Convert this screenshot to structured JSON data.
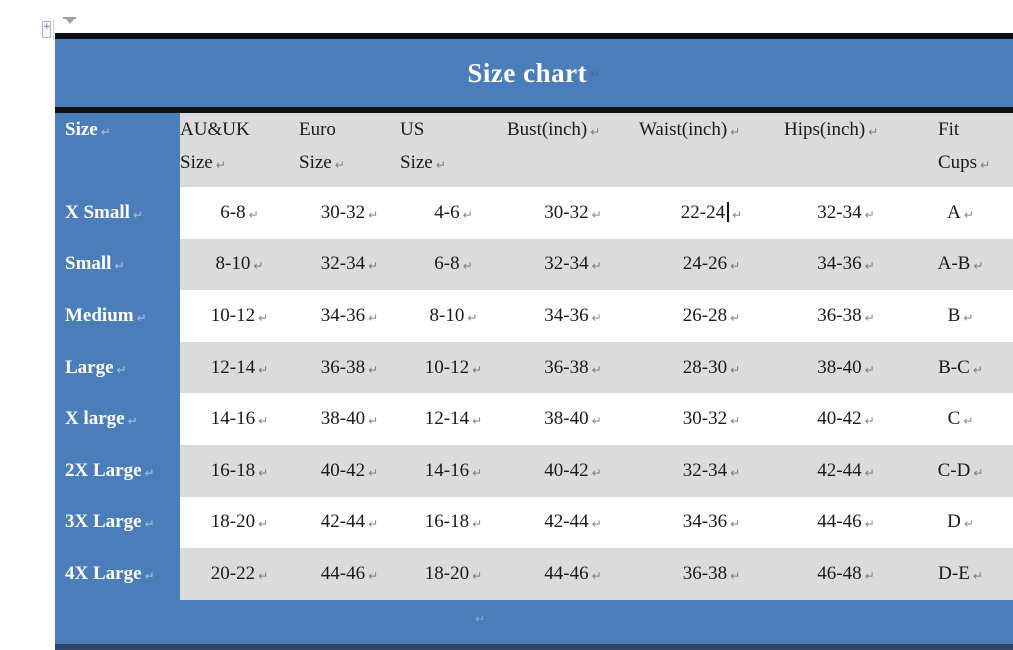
{
  "document": {
    "title": "Size chart",
    "formatting_mark": "↵",
    "cursor": {
      "row_index": 0,
      "column_index": 4
    }
  },
  "table": {
    "columns": [
      {
        "id": "size",
        "label_lines": [
          "Size"
        ]
      },
      {
        "id": "au-uk-size",
        "label_lines": [
          "AU&UK",
          "Size"
        ]
      },
      {
        "id": "euro-size",
        "label_lines": [
          "Euro",
          "Size"
        ]
      },
      {
        "id": "us-size",
        "label_lines": [
          "US",
          "Size"
        ]
      },
      {
        "id": "bust-inch",
        "label_lines": [
          "Bust(inch)"
        ]
      },
      {
        "id": "waist-inch",
        "label_lines": [
          "Waist(inch)"
        ]
      },
      {
        "id": "hips-inch",
        "label_lines": [
          "Hips(inch)"
        ]
      },
      {
        "id": "fit-cups",
        "label_lines": [
          "Fit",
          "Cups"
        ]
      }
    ],
    "rows": [
      {
        "label": "X Small",
        "values": [
          "6-8",
          "30-32",
          "4-6",
          "30-32",
          "22-24",
          "32-34",
          "A"
        ]
      },
      {
        "label": "Small",
        "values": [
          "8-10",
          "32-34",
          "6-8",
          "32-34",
          "24-26",
          "34-36",
          "A-B"
        ]
      },
      {
        "label": "Medium",
        "values": [
          "10-12",
          "34-36",
          "8-10",
          "34-36",
          "26-28",
          "36-38",
          "B"
        ]
      },
      {
        "label": "Large",
        "values": [
          "12-14",
          "36-38",
          "10-12",
          "36-38",
          "28-30",
          "38-40",
          "B-C"
        ]
      },
      {
        "label": "X large",
        "values": [
          "14-16",
          "38-40",
          "12-14",
          "38-40",
          "30-32",
          "40-42",
          "C"
        ]
      },
      {
        "label": "2X Large",
        "values": [
          "16-18",
          "40-42",
          "14-16",
          "40-42",
          "32-34",
          "42-44",
          "C-D"
        ]
      },
      {
        "label": "3X Large",
        "values": [
          "18-20",
          "42-44",
          "16-18",
          "42-44",
          "34-36",
          "44-46",
          "D"
        ]
      },
      {
        "label": "4X Large",
        "values": [
          "20-22",
          "44-46",
          "18-20",
          "44-46",
          "36-38",
          "46-48",
          "D-E"
        ]
      }
    ]
  },
  "icons": {
    "table_handle": "table-move-handle",
    "indent_marker": "ruler-indent-marker"
  },
  "colors": {
    "table_blue": "#4b7dbb",
    "row_gray": "#dbdbdb",
    "row_white": "#ffffff",
    "border_bar": "#101010",
    "bottom_stripe": "#2e4568",
    "text_black": "#1a1a1a",
    "text_white": "#ffffff"
  }
}
